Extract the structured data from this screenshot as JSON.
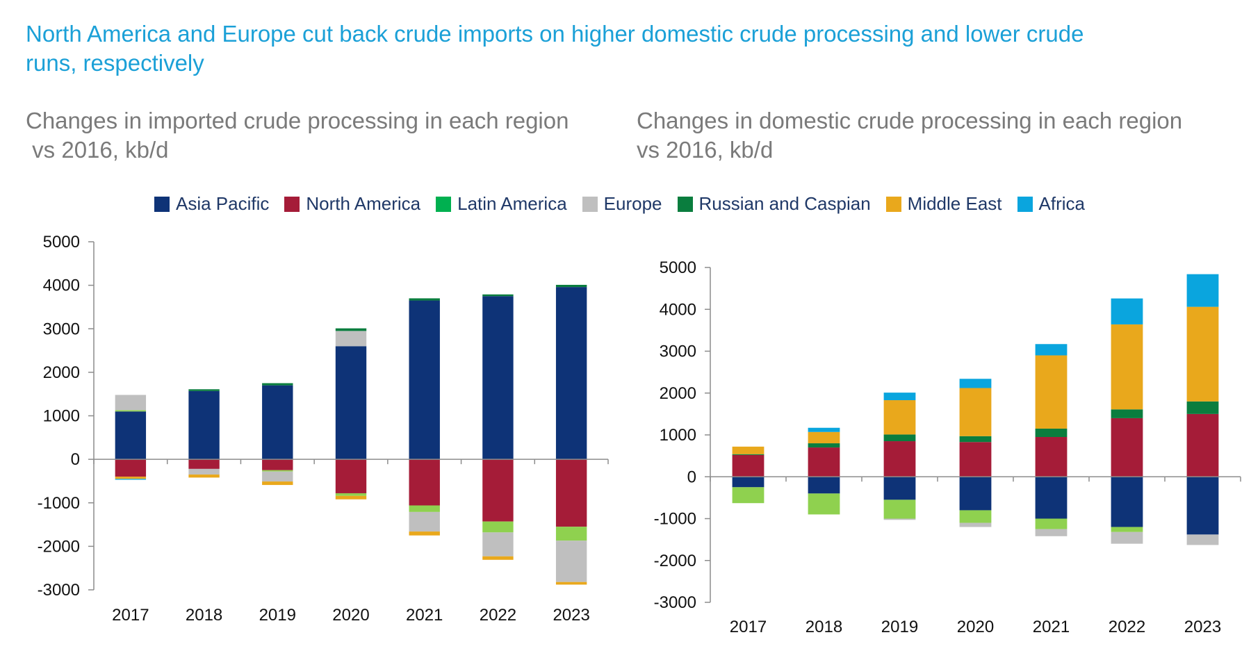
{
  "page": {
    "title": "North America and Europe cut back crude imports on higher domestic crude processing and lower crude runs, respectively"
  },
  "legend": {
    "items": [
      {
        "key": "asia_pacific",
        "label": "Asia Pacific",
        "color": "#0e3377"
      },
      {
        "key": "north_america",
        "label": "North America",
        "color": "#a51c38"
      },
      {
        "key": "latin_america",
        "label": "Latin America",
        "color": "#00b050"
      },
      {
        "key": "europe",
        "label": "Europe",
        "color": "#bfbfbf"
      },
      {
        "key": "russian_caspian",
        "label": "Russian and Caspian",
        "color": "#0a7d3e"
      },
      {
        "key": "middle_east",
        "label": "Middle East",
        "color": "#e9a81c"
      },
      {
        "key": "africa",
        "label": "Africa",
        "color": "#0aa5de"
      }
    ]
  },
  "chart_data": [
    {
      "type": "bar",
      "stacked": true,
      "title": "Changes in imported crude processing in each region\n vs 2016, kb/d",
      "categories": [
        "2017",
        "2018",
        "2019",
        "2020",
        "2021",
        "2022",
        "2023"
      ],
      "ylim": [
        -3000,
        5000
      ],
      "yticks": [
        5000,
        4000,
        3000,
        2000,
        1000,
        0,
        -1000,
        -2000,
        -3000
      ],
      "grid": false,
      "series": [
        {
          "name": "Asia Pacific",
          "color": "#0e3377",
          "values": [
            1100,
            1570,
            1700,
            2600,
            3650,
            3750,
            3960
          ]
        },
        {
          "name": "North America",
          "color": "#a51c38",
          "values": [
            -400,
            -220,
            -250,
            -780,
            -1060,
            -1430,
            -1550
          ]
        },
        {
          "name": "Latin America",
          "color": "#8fd14f",
          "values": [
            30,
            0,
            -30,
            -60,
            -150,
            -250,
            -320
          ]
        },
        {
          "name": "Europe",
          "color": "#bfbfbf",
          "values": [
            350,
            -130,
            -230,
            350,
            -450,
            -550,
            -950
          ]
        },
        {
          "name": "Russian and Caspian",
          "color": "#0a7d3e",
          "values": [
            0,
            40,
            50,
            60,
            50,
            40,
            50
          ]
        },
        {
          "name": "Middle East",
          "color": "#e9a81c",
          "values": [
            -50,
            -70,
            -80,
            -80,
            -90,
            -80,
            -60
          ]
        },
        {
          "name": "Africa",
          "color": "#0aa5de",
          "values": [
            -20,
            0,
            0,
            0,
            0,
            0,
            0
          ]
        }
      ]
    },
    {
      "type": "bar",
      "stacked": true,
      "title": "Changes in domestic crude processing in each region\nvs 2016, kb/d",
      "categories": [
        "2017",
        "2018",
        "2019",
        "2020",
        "2021",
        "2022",
        "2023"
      ],
      "ylim": [
        -3000,
        5000
      ],
      "yticks": [
        5000,
        4000,
        3000,
        2000,
        1000,
        0,
        -1000,
        -2000,
        -3000
      ],
      "grid": false,
      "series": [
        {
          "name": "Asia Pacific",
          "color": "#0e3377",
          "values": [
            -250,
            -400,
            -550,
            -800,
            -1000,
            -1200,
            -1380
          ]
        },
        {
          "name": "North America",
          "color": "#a51c38",
          "values": [
            520,
            700,
            850,
            830,
            950,
            1400,
            1500
          ]
        },
        {
          "name": "Latin America",
          "color": "#8fd14f",
          "values": [
            -380,
            -500,
            -450,
            -300,
            -250,
            -120,
            0
          ]
        },
        {
          "name": "Europe",
          "color": "#bfbfbf",
          "values": [
            0,
            0,
            -30,
            -100,
            -170,
            -280,
            -250
          ]
        },
        {
          "name": "Russian and Caspian",
          "color": "#0a7d3e",
          "values": [
            20,
            100,
            160,
            140,
            200,
            210,
            300
          ]
        },
        {
          "name": "Middle East",
          "color": "#e9a81c",
          "values": [
            180,
            270,
            820,
            1150,
            1750,
            2030,
            2260
          ]
        },
        {
          "name": "Africa",
          "color": "#0aa5de",
          "values": [
            0,
            100,
            180,
            220,
            270,
            620,
            780
          ]
        }
      ]
    }
  ]
}
